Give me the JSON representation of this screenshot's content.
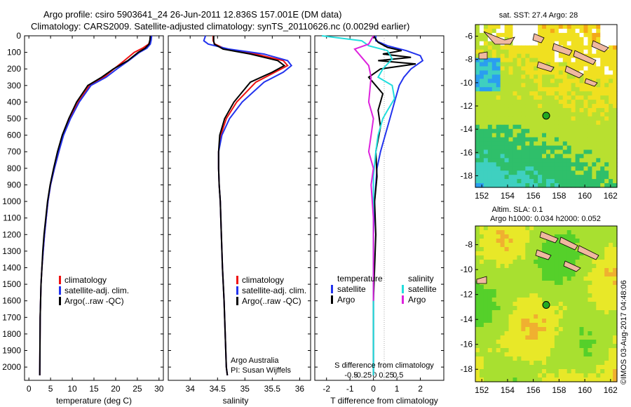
{
  "header": {
    "line1": "Argo profile: csiro 5903641_24 26-Jun-2011 12.836S 157.001E (DM data)",
    "line2": "Climatology: CARS2009. Satellite-adjusted climatology: synTS_20110626.nc (0.0029d earlier)"
  },
  "colors": {
    "climatology": "#ee1111",
    "satellite": "#2233ee",
    "argo": "#000000",
    "sat_salinity": "#22dddd",
    "argo_salinity": "#dd22dd"
  },
  "chart_data": [
    {
      "type": "line",
      "name": "temperature",
      "xlabel": "temperature (deg C)",
      "ylabel": "",
      "xlim": [
        -1,
        31
      ],
      "ylim": [
        2080,
        0
      ],
      "xticks": [
        0,
        5,
        10,
        15,
        20,
        25,
        30
      ],
      "yticks": [
        0,
        100,
        200,
        300,
        400,
        500,
        600,
        700,
        800,
        900,
        1000,
        1100,
        1200,
        1300,
        1400,
        1500,
        1600,
        1700,
        1800,
        1900,
        2000
      ],
      "legend": [
        "climatology",
        "satellite-adj. clim.",
        "Argo(..raw -QC)"
      ],
      "series": [
        {
          "name": "climatology",
          "color": "#ee1111",
          "x": [
            28.2,
            28.0,
            27.6,
            26.2,
            24.3,
            22.0,
            19.6,
            17.3,
            14.0,
            11.4,
            9.4,
            7.9,
            6.9,
            5.9,
            5.0,
            4.4,
            4.0,
            3.6,
            3.3,
            3.0,
            2.8,
            2.6,
            2.5
          ],
          "y": [
            0,
            25,
            50,
            75,
            100,
            150,
            200,
            250,
            300,
            400,
            500,
            600,
            700,
            800,
            900,
            1000,
            1100,
            1200,
            1300,
            1400,
            1500,
            1700,
            2050
          ]
        },
        {
          "name": "satellite",
          "color": "#2233ee",
          "x": [
            28.3,
            28.2,
            28.0,
            27.2,
            25.5,
            23.0,
            20.3,
            17.8,
            14.3,
            11.6,
            9.6,
            8.0,
            6.9,
            5.9,
            5.0,
            4.4,
            4.0,
            3.6,
            3.3,
            3.0,
            2.8,
            2.6,
            2.5
          ],
          "y": [
            0,
            25,
            50,
            75,
            100,
            150,
            200,
            250,
            300,
            400,
            500,
            600,
            700,
            800,
            900,
            1000,
            1100,
            1200,
            1300,
            1400,
            1500,
            1700,
            2050
          ]
        },
        {
          "name": "Argo",
          "color": "#000000",
          "x": [
            28.0,
            27.9,
            27.7,
            26.8,
            25.2,
            22.8,
            19.5,
            16.8,
            13.6,
            11.0,
            9.2,
            7.7,
            6.6,
            5.7,
            4.9,
            4.3,
            3.9,
            3.5,
            3.2,
            3.0,
            2.8,
            2.6,
            2.5
          ],
          "y": [
            0,
            25,
            50,
            75,
            100,
            150,
            200,
            250,
            300,
            400,
            500,
            600,
            700,
            800,
            900,
            1000,
            1100,
            1200,
            1300,
            1400,
            1500,
            1700,
            2050
          ]
        }
      ]
    },
    {
      "type": "line",
      "name": "salinity",
      "xlabel": "salinity",
      "xlim": [
        33.6,
        36.2
      ],
      "ylim": [
        2080,
        0
      ],
      "xticks": [
        34,
        34.5,
        35,
        35.5,
        36
      ],
      "legend": [
        "climatology",
        "satellite-adj. clim.",
        "Argo(..raw -QC)"
      ],
      "annotation": [
        "Argo Australia",
        "PI: Susan Wijffels"
      ],
      "series": [
        {
          "name": "climatology",
          "color": "#ee1111",
          "x": [
            34.42,
            34.42,
            34.45,
            34.65,
            35.2,
            35.7,
            35.78,
            35.55,
            35.2,
            34.85,
            34.66,
            34.56,
            34.52,
            34.52,
            34.53,
            34.55,
            34.57,
            34.59,
            34.62,
            34.64,
            34.66,
            34.68
          ],
          "y": [
            0,
            30,
            50,
            80,
            110,
            150,
            180,
            220,
            280,
            400,
            500,
            600,
            700,
            800,
            900,
            1000,
            1200,
            1400,
            1600,
            1800,
            2000,
            2050
          ]
        },
        {
          "name": "satellite",
          "color": "#2233ee",
          "x": [
            34.28,
            34.25,
            34.33,
            34.7,
            35.35,
            35.78,
            35.85,
            35.7,
            35.35,
            34.95,
            34.72,
            34.58,
            34.52,
            34.52,
            34.53,
            34.55,
            34.57,
            34.59,
            34.62,
            34.64,
            34.66,
            34.68
          ],
          "y": [
            0,
            30,
            50,
            80,
            110,
            150,
            180,
            220,
            280,
            400,
            500,
            600,
            700,
            800,
            900,
            1000,
            1200,
            1400,
            1600,
            1800,
            2000,
            2050
          ]
        },
        {
          "name": "Argo",
          "color": "#000000",
          "x": [
            34.43,
            34.43,
            34.44,
            34.6,
            35.1,
            35.6,
            35.72,
            35.5,
            35.1,
            34.8,
            34.63,
            34.54,
            34.52,
            34.52,
            34.53,
            34.55,
            34.57,
            34.59,
            34.62,
            34.64,
            34.66,
            34.68
          ],
          "y": [
            0,
            30,
            50,
            80,
            110,
            150,
            180,
            220,
            280,
            400,
            500,
            600,
            700,
            800,
            900,
            1000,
            1200,
            1400,
            1600,
            1800,
            2000,
            2050
          ]
        }
      ]
    },
    {
      "type": "line",
      "name": "differences",
      "xlabel": "T difference from climatology",
      "xlabel2": "S difference from climatology",
      "xlim": [
        -2.5,
        3.0
      ],
      "ylim": [
        2080,
        0
      ],
      "xticks": [
        -2,
        -1,
        0,
        1,
        2
      ],
      "sticks": [
        "-0.5",
        "-0.25",
        "0",
        "0.25",
        "0.5"
      ],
      "sticks_T": [
        -2,
        -1,
        0,
        1,
        2
      ],
      "legend": {
        "temperature_title": "temperature",
        "salinity_title": "salinity",
        "items": [
          "satellite",
          "Argo",
          "satellite",
          "Argo"
        ]
      },
      "series": [
        {
          "name": "T satellite",
          "color": "#2233ee",
          "x": [
            0.1,
            0.1,
            0.6,
            1.4,
            2.0,
            2.1,
            1.6,
            1.3,
            1.1,
            0.9,
            0.7,
            0.5,
            0.3,
            0.15,
            0.1,
            0.05,
            0,
            0,
            0
          ],
          "y": [
            0,
            30,
            60,
            90,
            120,
            150,
            200,
            250,
            300,
            400,
            500,
            600,
            700,
            800,
            900,
            1000,
            1200,
            1600,
            2050
          ]
        },
        {
          "name": "T Argo",
          "color": "#000000",
          "x": [
            0,
            0.2,
            0.6,
            1.2,
            0.4,
            1.6,
            0.2,
            1.8,
            0.3,
            -0.2,
            0.4,
            0.2,
            0.3,
            0.1,
            0.15,
            0.05,
            0.1,
            0,
            0
          ],
          "y": [
            0,
            40,
            70,
            90,
            110,
            130,
            150,
            170,
            200,
            250,
            350,
            450,
            550,
            700,
            850,
            1000,
            1200,
            1600,
            2050
          ]
        },
        {
          "name": "S satellite",
          "color": "#22dddd",
          "x": [
            -2.2,
            -0.5,
            -0.2,
            0.6,
            0.8,
            0.4,
            0.2,
            0.8,
            0.9,
            0.6,
            0.4,
            0.2,
            0.1,
            0,
            0,
            0
          ],
          "y": [
            0,
            30,
            60,
            90,
            140,
            200,
            250,
            300,
            380,
            450,
            500,
            600,
            700,
            850,
            1000,
            2050
          ]
        },
        {
          "name": "S Argo",
          "color": "#dd22dd",
          "x": [
            0,
            -0.2,
            -0.8,
            -0.5,
            -0.2,
            -0.1,
            -0.2,
            0,
            -0.1,
            -0.2,
            0,
            -0.1,
            0,
            0,
            0
          ],
          "y": [
            0,
            50,
            80,
            130,
            180,
            250,
            400,
            500,
            600,
            700,
            800,
            900,
            1100,
            1400,
            1600
          ]
        }
      ]
    }
  ],
  "maps": [
    {
      "name": "sst",
      "title": "sat. SST: 27.4 Argo: 28",
      "xlim": [
        151.5,
        162.5
      ],
      "ylim": [
        -19,
        -5
      ],
      "xticks": [
        152,
        154,
        156,
        158,
        160,
        162
      ],
      "yticks": [
        -6,
        -8,
        -10,
        -12,
        -14,
        -16,
        -18
      ],
      "marker": {
        "lon": 157.001,
        "lat": -12.836,
        "color": "#22aa22"
      }
    },
    {
      "name": "sla",
      "title1": "Altim. SLA: 0.1",
      "title2": "Argo h1000: 0.034 h2000: 0.052",
      "xlim": [
        151.5,
        162.5
      ],
      "ylim": [
        -19,
        -6.5
      ],
      "xticks": [
        152,
        154,
        156,
        158,
        160,
        162
      ],
      "yticks": [
        -8,
        -10,
        -12,
        -14,
        -16,
        -18
      ],
      "marker": {
        "lon": 157.001,
        "lat": -12.836,
        "color": "#22aa22"
      }
    }
  ],
  "watermark": "©IMOS 03-Aug-2017 04:48:06"
}
